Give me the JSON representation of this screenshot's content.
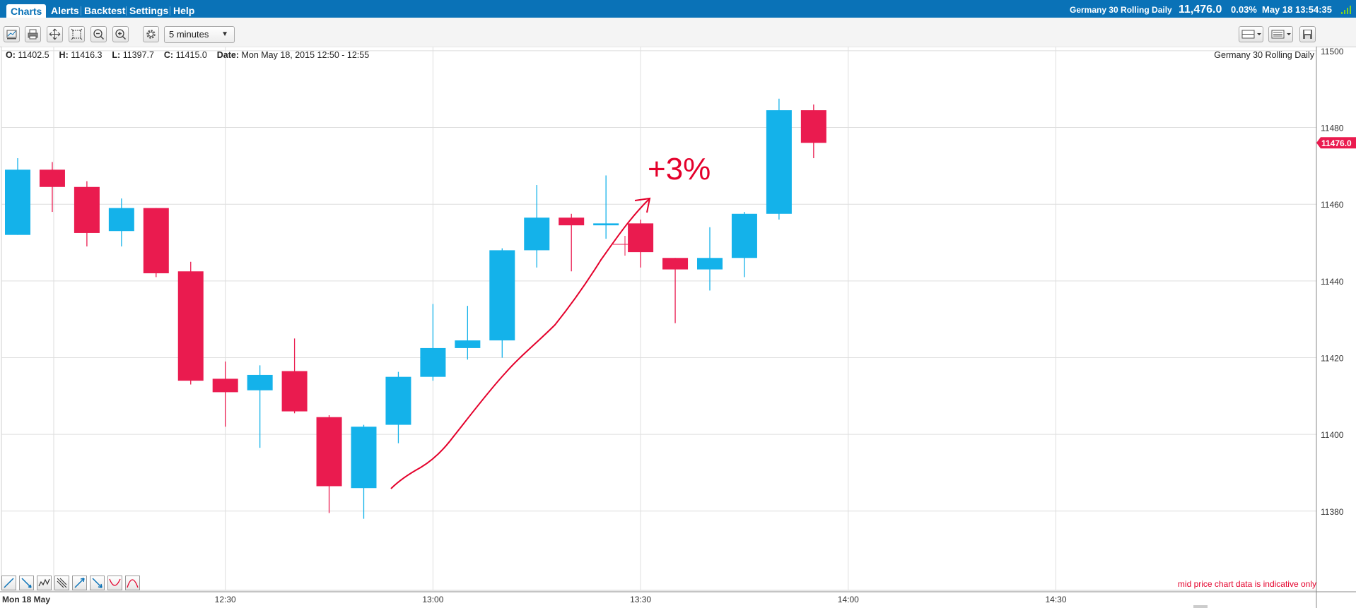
{
  "nav": {
    "tabs": [
      "Charts",
      "Alerts",
      "Backtest",
      "Settings",
      "Help"
    ],
    "instrument": "Germany 30 Rolling Daily",
    "price": "11,476.0",
    "change": "0.03%",
    "datetime": "May 18 13:54:35"
  },
  "toolbar": {
    "interval": "5 minutes",
    "icons": [
      "chart-type-icon",
      "print-icon",
      "pan-icon",
      "zoom-area-icon",
      "zoom-out-icon",
      "zoom-in-icon",
      "settings-gear-icon",
      "layout-icon",
      "list-icon",
      "save-icon"
    ]
  },
  "info": {
    "o_label": "O:",
    "o": "11402.5",
    "h_label": "H:",
    "h": "11416.3",
    "l_label": "L:",
    "l": "11397.7",
    "c_label": "C:",
    "c": "11415.0",
    "date_label": "Date:",
    "date": "Mon May 18, 2015 12:50 - 12:55",
    "instrument": "Germany 30 Rolling Daily"
  },
  "disclaimer": "mid price chart data is indicative only",
  "drawing_tools": [
    "trendline-icon",
    "ray-icon",
    "wave-icon",
    "fib-icon",
    "line-up-icon",
    "line-down-icon",
    "curve-icon",
    "bell-icon"
  ],
  "annotation": {
    "text": "+3%",
    "color": "#e4002b"
  },
  "colors": {
    "up": "#14b2ea",
    "down": "#ea1b4f",
    "grid": "#dedede",
    "nav": "#0a72b7"
  },
  "chart_data": {
    "type": "candlestick",
    "title": "Germany 30 Rolling Daily",
    "x_ticks": [
      "Mon 18 May",
      "12:30",
      "13:00",
      "13:30",
      "14:00",
      "14:30"
    ],
    "y_ticks": [
      11380,
      11400,
      11420,
      11440,
      11460,
      11480,
      11500
    ],
    "ylim": [
      11370,
      11506
    ],
    "current_price_label": "11476.0",
    "grid": true,
    "candles": [
      {
        "time": "12:00",
        "open": 11452,
        "high": 11472,
        "low": 11452,
        "close": 11469
      },
      {
        "time": "12:05",
        "open": 11469,
        "high": 11471,
        "low": 11458,
        "close": 11464.5
      },
      {
        "time": "12:10",
        "open": 11464.5,
        "high": 11466,
        "low": 11449,
        "close": 11452.5
      },
      {
        "time": "12:15",
        "open": 11453,
        "high": 11461.5,
        "low": 11449,
        "close": 11459
      },
      {
        "time": "12:20",
        "open": 11459,
        "high": 11459,
        "low": 11441,
        "close": 11442
      },
      {
        "time": "12:25",
        "open": 11442.5,
        "high": 11445,
        "low": 11413,
        "close": 11414
      },
      {
        "time": "12:30",
        "open": 11414.5,
        "high": 11419,
        "low": 11402,
        "close": 11411
      },
      {
        "time": "12:35",
        "open": 11411.5,
        "high": 11418,
        "low": 11396.5,
        "close": 11415.5
      },
      {
        "time": "12:40",
        "open": 11416.5,
        "high": 11425,
        "low": 11405.5,
        "close": 11406
      },
      {
        "time": "12:45",
        "open": 11404.5,
        "high": 11405,
        "low": 11379.5,
        "close": 11386.5
      },
      {
        "time": "12:50",
        "open": 11386,
        "high": 11402.5,
        "low": 11378,
        "close": 11402
      },
      {
        "time": "12:55",
        "open": 11402.5,
        "high": 11416.3,
        "low": 11397.7,
        "close": 11415
      },
      {
        "time": "13:00",
        "open": 11415,
        "high": 11434,
        "low": 11414,
        "close": 11422.5
      },
      {
        "time": "13:05",
        "open": 11422.5,
        "high": 11433.5,
        "low": 11419.5,
        "close": 11424.5
      },
      {
        "time": "13:10",
        "open": 11424.5,
        "high": 11448.5,
        "low": 11420,
        "close": 11448
      },
      {
        "time": "13:15",
        "open": 11448,
        "high": 11465,
        "low": 11443.5,
        "close": 11456.5
      },
      {
        "time": "13:20",
        "open": 11456.5,
        "high": 11457.5,
        "low": 11442.5,
        "close": 11454.5
      },
      {
        "time": "13:25",
        "open": 11454.5,
        "high": 11467.5,
        "low": 11451,
        "close": 11455
      },
      {
        "time": "13:30",
        "open": 11455,
        "high": 11456,
        "low": 11443.5,
        "close": 11447.5
      },
      {
        "time": "13:35",
        "open": 11446,
        "high": 11446,
        "low": 11429,
        "close": 11443
      },
      {
        "time": "13:40",
        "open": 11443,
        "high": 11454,
        "low": 11437.5,
        "close": 11446
      },
      {
        "time": "13:45",
        "open": 11446,
        "high": 11458,
        "low": 11441,
        "close": 11457.5
      },
      {
        "time": "13:50",
        "open": 11457.5,
        "high": 11487.5,
        "low": 11456,
        "close": 11484.5
      },
      {
        "time": "13:55",
        "open": 11484.5,
        "high": 11486,
        "low": 11472,
        "close": 11476
      }
    ]
  }
}
